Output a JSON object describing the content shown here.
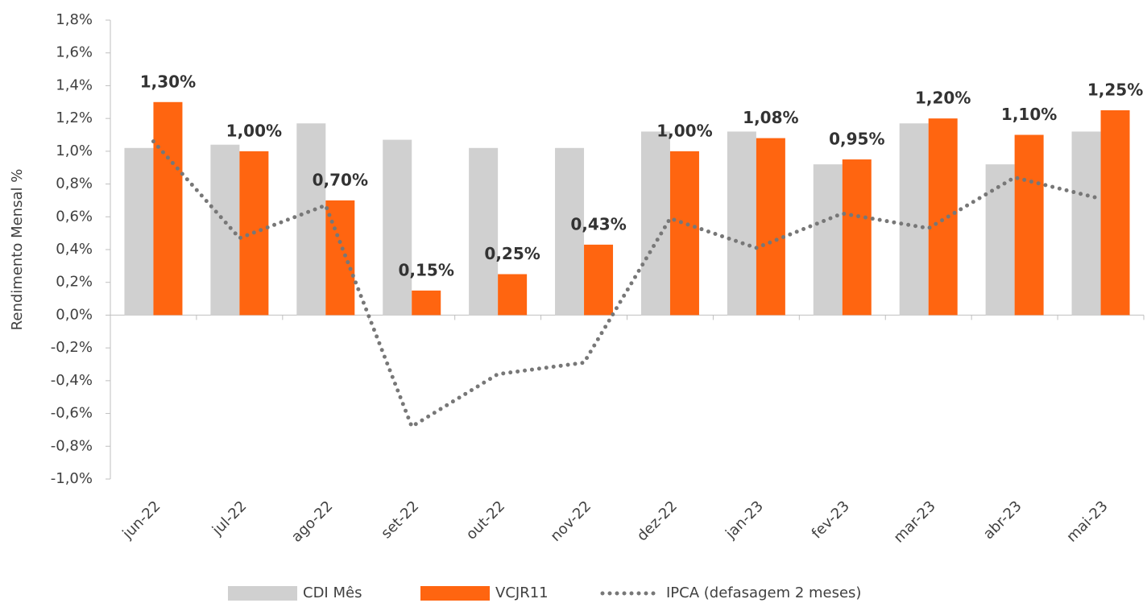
{
  "chart_data": {
    "type": "bar",
    "y_label": "Rendimento Mensal %",
    "categories": [
      "jun-22",
      "jul-22",
      "ago-22",
      "set-22",
      "out-22",
      "nov-22",
      "dez-22",
      "jan-23",
      "fev-23",
      "mar-23",
      "abr-23",
      "mai-23"
    ],
    "series": [
      {
        "name": "CDI Mês",
        "type": "bar",
        "color": "#d0d0d0",
        "values": [
          1.02,
          1.04,
          1.17,
          1.07,
          1.02,
          1.02,
          1.12,
          1.12,
          0.92,
          1.17,
          0.92,
          1.12
        ]
      },
      {
        "name": "VCJR11",
        "type": "bar",
        "color": "#ff6510",
        "values": [
          1.3,
          1.0,
          0.7,
          0.15,
          0.25,
          0.43,
          1.0,
          1.08,
          0.95,
          1.2,
          1.1,
          1.25
        ],
        "value_labels": [
          "1,30%",
          "1,00%",
          "0,70%",
          "0,15%",
          "0,25%",
          "0,43%",
          "1,00%",
          "1,08%",
          "0,95%",
          "1,20%",
          "1,10%",
          "1,25%"
        ]
      },
      {
        "name": "IPCA (defasagem 2 meses)",
        "type": "line",
        "color": "#777777",
        "values": [
          1.06,
          0.47,
          0.67,
          -0.68,
          -0.36,
          -0.29,
          0.59,
          0.41,
          0.62,
          0.53,
          0.84,
          0.71
        ]
      }
    ],
    "ylim": [
      -1.0,
      1.8
    ],
    "yticks": [
      {
        "value": -1.0,
        "label": "-1,0%"
      },
      {
        "value": -0.8,
        "label": "-0,8%"
      },
      {
        "value": -0.6,
        "label": "-0,6%"
      },
      {
        "value": -0.4,
        "label": "-0,4%"
      },
      {
        "value": -0.2,
        "label": "-0,2%"
      },
      {
        "value": 0,
        "label": "0,0%"
      },
      {
        "value": 0.2,
        "label": "0,2%"
      },
      {
        "value": 0.4,
        "label": "0,4%"
      },
      {
        "value": 0.6,
        "label": "0,6%"
      },
      {
        "value": 0.8,
        "label": "0,8%"
      },
      {
        "value": 1.0,
        "label": "1,0%"
      },
      {
        "value": 1.2,
        "label": "1,2%"
      },
      {
        "value": 1.4,
        "label": "1,4%"
      },
      {
        "value": 1.6,
        "label": "1,6%"
      },
      {
        "value": 1.8,
        "label": "1,8%"
      }
    ],
    "legend": "bottom"
  }
}
